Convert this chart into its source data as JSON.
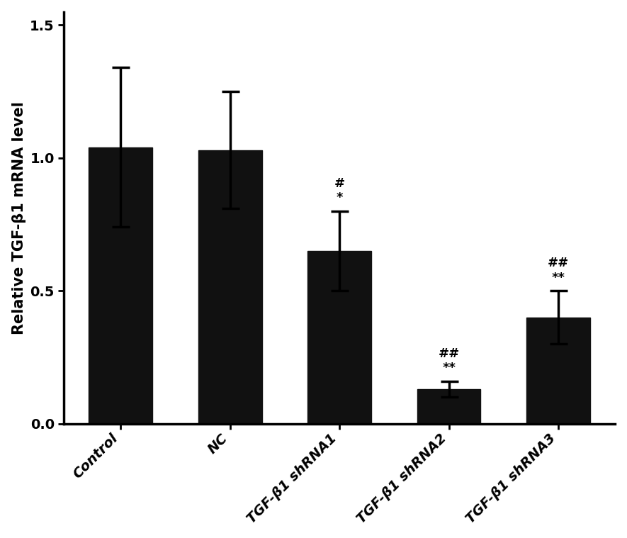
{
  "categories": [
    "Control",
    "NC",
    "TGF-β1 shRNA1",
    "TGF-β1 shRNA2",
    "TGF-β1 shRNA3"
  ],
  "values": [
    1.04,
    1.03,
    0.65,
    0.13,
    0.4
  ],
  "errors": [
    0.3,
    0.22,
    0.15,
    0.03,
    0.1
  ],
  "bar_color": "#111111",
  "bar_width": 0.58,
  "ylabel": "Relative TGF-β1 mRNA level",
  "ylim": [
    0,
    1.55
  ],
  "yticks": [
    0.0,
    0.5,
    1.0,
    1.5
  ],
  "background_color": "#ffffff",
  "annotations": {
    "2": [
      "#",
      "*"
    ],
    "3": [
      "##",
      "**"
    ],
    "4": [
      "##",
      "**"
    ]
  },
  "tick_label_fontsize": 14,
  "ylabel_fontsize": 15,
  "annotation_fontsize": 13
}
